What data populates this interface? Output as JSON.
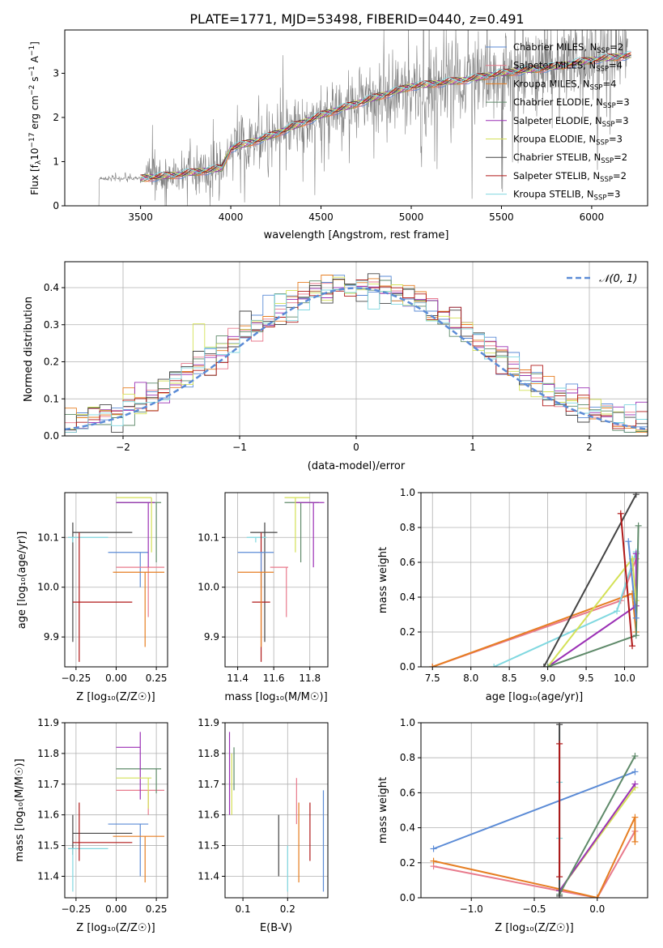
{
  "title": "PLATE=1771, MJD=53498, FIBERID=0440, z=0.491",
  "chart_data": [
    {
      "type": "line",
      "id": "spectrum",
      "xlabel": "wavelength [Angstrom, rest frame]",
      "ylabel_main": "Flux [f",
      "ylabel_sub": "λ",
      "ylabel_mid": "10",
      "ylabel_sup1": "−17",
      "ylabel_rest": " erg cm",
      "ylabel_sup2": "−2",
      "ylabel_s": " s",
      "ylabel_sup3": "−1",
      "ylabel_a": " A",
      "ylabel_sup4": "−1",
      "ylabel_end": "]",
      "xlim": [
        3080,
        6310
      ],
      "ylim": [
        0,
        3.98
      ],
      "xticks": [
        "3500",
        "4000",
        "4500",
        "5000",
        "5500",
        "6000"
      ],
      "yticks": [
        "0",
        "1",
        "2",
        "3"
      ],
      "xtick_values": [
        3500,
        4000,
        4500,
        5000,
        5500,
        6000
      ],
      "ytick_values": [
        0,
        1,
        2,
        3
      ],
      "data_color": "#808080",
      "legend": [
        {
          "name": "Chabrier MILES, N",
          "sub": "SSP",
          "tail": "=2",
          "color": "#5b8bd6"
        },
        {
          "name": "Salpeter MILES, N",
          "sub": "SSP",
          "tail": "=4",
          "color": "#e87a8c"
        },
        {
          "name": "Kroupa MILES, N",
          "sub": "SSP",
          "tail": "=4",
          "color": "#e67e22"
        },
        {
          "name": "Chabrier ELODIE, N",
          "sub": "SSP",
          "tail": "=3",
          "color": "#5f8a6a"
        },
        {
          "name": "Salpeter ELODIE, N",
          "sub": "SSP",
          "tail": "=3",
          "color": "#9b30b5"
        },
        {
          "name": "Kroupa ELODIE, N",
          "sub": "SSP",
          "tail": "=3",
          "color": "#d4e157"
        },
        {
          "name": "Chabrier STELIB, N",
          "sub": "SSP",
          "tail": "=2",
          "color": "#444444"
        },
        {
          "name": "Salpeter STELIB, N",
          "sub": "SSP",
          "tail": "=2",
          "color": "#b01818"
        },
        {
          "name": "Kroupa STELIB, N",
          "sub": "SSP",
          "tail": "=3",
          "color": "#80d8e0"
        }
      ],
      "model_knots": [
        [
          3500,
          0.62
        ],
        [
          3700,
          0.7
        ],
        [
          3950,
          0.85
        ],
        [
          4000,
          1.3
        ],
        [
          4200,
          1.55
        ],
        [
          4500,
          2.05
        ],
        [
          4800,
          2.45
        ],
        [
          5000,
          2.7
        ],
        [
          5300,
          2.85
        ],
        [
          5500,
          3.0
        ],
        [
          5800,
          3.15
        ],
        [
          6000,
          3.3
        ],
        [
          6200,
          3.4
        ]
      ]
    },
    {
      "type": "step",
      "id": "residual-histogram",
      "xlabel": "(data-model)/error",
      "ylabel": "Normed distribution",
      "xlim": [
        -2.5,
        2.5
      ],
      "ylim": [
        0,
        0.47
      ],
      "xticks": [
        "−2",
        "−1",
        "0",
        "1",
        "2"
      ],
      "yticks": [
        "0.0",
        "0.1",
        "0.2",
        "0.3",
        "0.4"
      ],
      "xtick_values": [
        -2,
        -1,
        0,
        1,
        2
      ],
      "ytick_values": [
        0,
        0.1,
        0.2,
        0.3,
        0.4
      ],
      "bin_width": 0.1,
      "reference_label": "𝒩(0, 1)",
      "reference_color": "#5b8bd6",
      "legend_position": "top-right"
    },
    {
      "type": "scatter",
      "id": "age-vs-metallicity",
      "xlabel": "Z [log₁₀(Z/Z☉)]",
      "ylabel": "age  [log₁₀(age/yr)]",
      "xlim": [
        -0.32,
        0.32
      ],
      "ylim": [
        9.84,
        10.19
      ],
      "xticks": [
        "−0.25",
        "0.00",
        "0.25"
      ],
      "yticks": [
        "9.9",
        "10.0",
        "10.1"
      ],
      "xtick_values": [
        -0.25,
        0,
        0.25
      ],
      "ytick_values": [
        9.9,
        10.0,
        10.1
      ],
      "bars": [
        {
          "color": "#444444",
          "x": -0.27,
          "y": 10.11,
          "xr": [
            -0.27,
            0.1
          ],
          "yr": [
            9.89,
            10.13
          ]
        },
        {
          "color": "#80d8e0",
          "x": -0.27,
          "y": 10.1,
          "xr": [
            -0.3,
            -0.05
          ],
          "yr": [
            10.09,
            10.1
          ]
        },
        {
          "color": "#b01818",
          "x": -0.23,
          "y": 9.97,
          "xr": [
            -0.27,
            0.1
          ],
          "yr": [
            9.85,
            10.11
          ]
        },
        {
          "color": "#5b8bd6",
          "x": 0.15,
          "y": 10.07,
          "xr": [
            -0.05,
            0.2
          ],
          "yr": [
            10.0,
            10.07
          ]
        },
        {
          "color": "#e87a8c",
          "x": 0.2,
          "y": 10.04,
          "xr": [
            0.0,
            0.3
          ],
          "yr": [
            9.94,
            10.04
          ]
        },
        {
          "color": "#e67e22",
          "x": 0.18,
          "y": 10.03,
          "xr": [
            -0.02,
            0.3
          ],
          "yr": [
            9.88,
            10.03
          ]
        },
        {
          "color": "#5f8a6a",
          "x": 0.25,
          "y": 10.17,
          "xr": [
            0.0,
            0.28
          ],
          "yr": [
            10.05,
            10.17
          ]
        },
        {
          "color": "#9b30b5",
          "x": 0.2,
          "y": 10.17,
          "xr": [
            0.0,
            0.24
          ],
          "yr": [
            10.04,
            10.17
          ]
        },
        {
          "color": "#d4e157",
          "x": 0.22,
          "y": 10.18,
          "xr": [
            0.0,
            0.22
          ],
          "yr": [
            10.07,
            10.18
          ]
        }
      ]
    },
    {
      "type": "scatter",
      "id": "age-vs-mass",
      "xlabel": "mass [log₁₀(M/M☉)]",
      "ylabel": "",
      "xlim": [
        11.33,
        11.9
      ],
      "ylim": [
        9.84,
        10.19
      ],
      "xticks": [
        "11.4",
        "11.6",
        "11.8"
      ],
      "yticks": [
        "9.9",
        "10.0",
        "10.1"
      ],
      "xtick_values": [
        11.4,
        11.6,
        11.8
      ],
      "ytick_values": [
        9.9,
        10.0,
        10.1
      ],
      "bars": [
        {
          "color": "#444444",
          "x": 11.55,
          "y": 10.11,
          "xr": [
            11.47,
            11.62
          ],
          "yr": [
            9.89,
            10.13
          ]
        },
        {
          "color": "#80d8e0",
          "x": 11.5,
          "y": 10.1,
          "xr": [
            11.45,
            11.56
          ],
          "yr": [
            10.09,
            10.1
          ]
        },
        {
          "color": "#b01818",
          "x": 11.53,
          "y": 9.97,
          "xr": [
            11.48,
            11.58
          ],
          "yr": [
            9.85,
            10.11
          ]
        },
        {
          "color": "#5b8bd6",
          "x": 11.53,
          "y": 10.07,
          "xr": [
            11.4,
            11.6
          ],
          "yr": [
            10.0,
            10.07
          ]
        },
        {
          "color": "#e87a8c",
          "x": 11.67,
          "y": 10.04,
          "xr": [
            11.58,
            11.68
          ],
          "yr": [
            9.94,
            10.04
          ]
        },
        {
          "color": "#e67e22",
          "x": 11.53,
          "y": 10.03,
          "xr": [
            11.4,
            11.6
          ],
          "yr": [
            9.88,
            10.03
          ]
        },
        {
          "color": "#5f8a6a",
          "x": 11.75,
          "y": 10.17,
          "xr": [
            11.66,
            11.85
          ],
          "yr": [
            10.05,
            10.17
          ]
        },
        {
          "color": "#9b30b5",
          "x": 11.82,
          "y": 10.17,
          "xr": [
            11.72,
            11.88
          ],
          "yr": [
            10.04,
            10.17
          ]
        },
        {
          "color": "#d4e157",
          "x": 11.72,
          "y": 10.18,
          "xr": [
            11.66,
            11.8
          ],
          "yr": [
            10.07,
            10.18
          ]
        }
      ]
    },
    {
      "type": "line",
      "id": "mass-weight-vs-age",
      "xlabel": "age  [log₁₀(age/yr)]",
      "ylabel": "mass weight",
      "xlim": [
        7.35,
        10.3
      ],
      "ylim": [
        0,
        1
      ],
      "xticks": [
        "7.5",
        "8.0",
        "8.5",
        "9.0",
        "9.5",
        "10.0"
      ],
      "yticks": [
        "0.0",
        "0.2",
        "0.4",
        "0.6",
        "0.8",
        "1.0"
      ],
      "xtick_values": [
        7.5,
        8.0,
        8.5,
        9.0,
        9.5,
        10.0
      ],
      "ytick_values": [
        0,
        0.2,
        0.4,
        0.6,
        0.8,
        1.0
      ],
      "series": [
        {
          "color": "#e87a8c",
          "points": [
            [
              7.5,
              0.0
            ],
            [
              9.95,
              0.38
            ],
            [
              10.15,
              0.62
            ]
          ]
        },
        {
          "color": "#e67e22",
          "points": [
            [
              7.5,
              0.0
            ],
            [
              10.1,
              0.42
            ],
            [
              10.15,
              0.2
            ]
          ]
        },
        {
          "color": "#80d8e0",
          "points": [
            [
              8.3,
              0.0
            ],
            [
              9.9,
              0.32
            ],
            [
              10.15,
              0.66
            ]
          ]
        },
        {
          "color": "#9b30b5",
          "points": [
            [
              9.0,
              0.0
            ],
            [
              10.15,
              0.35
            ],
            [
              10.15,
              0.65
            ]
          ]
        },
        {
          "color": "#d4e157",
          "points": [
            [
              9.0,
              0.0
            ],
            [
              10.1,
              0.62
            ],
            [
              10.15,
              0.38
            ]
          ]
        },
        {
          "color": "#5f8a6a",
          "points": [
            [
              9.0,
              0.0
            ],
            [
              10.15,
              0.18
            ],
            [
              10.18,
              0.81
            ]
          ]
        },
        {
          "color": "#444444",
          "points": [
            [
              8.95,
              0.0
            ],
            [
              10.15,
              0.99
            ]
          ]
        },
        {
          "color": "#b01818",
          "points": [
            [
              9.95,
              0.88
            ],
            [
              10.1,
              0.12
            ]
          ]
        },
        {
          "color": "#5b8bd6",
          "points": [
            [
              10.05,
              0.72
            ],
            [
              10.15,
              0.28
            ]
          ]
        }
      ]
    },
    {
      "type": "scatter",
      "id": "mass-vs-metallicity",
      "xlabel": "Z [log₁₀(Z/Z☉)]",
      "ylabel": "mass [log₁₀(M/M☉)]",
      "xlim": [
        -0.32,
        0.32
      ],
      "ylim": [
        11.33,
        11.9
      ],
      "xticks": [
        "−0.25",
        "0.00",
        "0.25"
      ],
      "yticks": [
        "11.4",
        "11.5",
        "11.6",
        "11.7",
        "11.8",
        "11.9"
      ],
      "xtick_values": [
        -0.25,
        0,
        0.25
      ],
      "ytick_values": [
        11.4,
        11.5,
        11.6,
        11.7,
        11.8,
        11.9
      ],
      "bars": [
        {
          "color": "#444444",
          "x": -0.27,
          "y": 11.54,
          "xr": [
            -0.27,
            0.1
          ],
          "yr": [
            11.47,
            11.6
          ]
        },
        {
          "color": "#80d8e0",
          "x": -0.27,
          "y": 11.49,
          "xr": [
            -0.3,
            -0.05
          ],
          "yr": [
            11.35,
            11.49
          ]
        },
        {
          "color": "#b01818",
          "x": -0.23,
          "y": 11.51,
          "xr": [
            -0.27,
            0.1
          ],
          "yr": [
            11.45,
            11.64
          ]
        },
        {
          "color": "#5b8bd6",
          "x": 0.15,
          "y": 11.57,
          "xr": [
            -0.05,
            0.2
          ],
          "yr": [
            11.4,
            11.57
          ]
        },
        {
          "color": "#e87a8c",
          "x": 0.2,
          "y": 11.68,
          "xr": [
            0.0,
            0.3
          ],
          "yr": [
            11.6,
            11.68
          ]
        },
        {
          "color": "#e67e22",
          "x": 0.18,
          "y": 11.53,
          "xr": [
            -0.02,
            0.3
          ],
          "yr": [
            11.38,
            11.53
          ]
        },
        {
          "color": "#5f8a6a",
          "x": 0.25,
          "y": 11.75,
          "xr": [
            0.0,
            0.28
          ],
          "yr": [
            11.67,
            11.75
          ]
        },
        {
          "color": "#9b30b5",
          "x": 0.15,
          "y": 11.82,
          "xr": [
            0.0,
            0.15
          ],
          "yr": [
            11.65,
            11.87
          ]
        },
        {
          "color": "#d4e157",
          "x": 0.2,
          "y": 11.72,
          "xr": [
            0.0,
            0.22
          ],
          "yr": [
            11.62,
            11.72
          ]
        }
      ]
    },
    {
      "type": "scatter",
      "id": "mass-vs-extinction",
      "xlabel": "E(B-V)",
      "ylabel": "",
      "xlim": [
        0.06,
        0.29
      ],
      "ylim": [
        11.33,
        11.9
      ],
      "xticks": [
        "0.1",
        "0.2"
      ],
      "yticks": [
        "11.4",
        "11.5",
        "11.6",
        "11.7",
        "11.8",
        "11.9"
      ],
      "xtick_values": [
        0.1,
        0.2
      ],
      "ytick_values": [
        11.4,
        11.5,
        11.6,
        11.7,
        11.8,
        11.9
      ],
      "bars": [
        {
          "color": "#9b30b5",
          "x": 0.07,
          "yr": [
            11.6,
            11.87
          ]
        },
        {
          "color": "#d4e157",
          "x": 0.075,
          "yr": [
            11.6,
            11.8
          ]
        },
        {
          "color": "#5f8a6a",
          "x": 0.08,
          "yr": [
            11.68,
            11.82
          ]
        },
        {
          "color": "#444444",
          "x": 0.18,
          "yr": [
            11.4,
            11.6
          ]
        },
        {
          "color": "#80d8e0",
          "x": 0.2,
          "yr": [
            11.35,
            11.5
          ]
        },
        {
          "color": "#e87a8c",
          "x": 0.22,
          "yr": [
            11.57,
            11.72
          ]
        },
        {
          "color": "#e67e22",
          "x": 0.225,
          "yr": [
            11.38,
            11.64
          ]
        },
        {
          "color": "#b01818",
          "x": 0.25,
          "yr": [
            11.45,
            11.64
          ]
        },
        {
          "color": "#5b8bd6",
          "x": 0.28,
          "yr": [
            11.35,
            11.68
          ]
        }
      ]
    },
    {
      "type": "line",
      "id": "mass-weight-vs-metallicity",
      "xlabel": "Z [log₁₀(Z/Z☉)]",
      "ylabel": "mass weight",
      "xlim": [
        -1.4,
        0.4
      ],
      "ylim": [
        0,
        1
      ],
      "xticks": [
        "−1.0",
        "−0.5",
        "0.0"
      ],
      "yticks": [
        "0.0",
        "0.2",
        "0.4",
        "0.6",
        "0.8",
        "1.0"
      ],
      "xtick_values": [
        -1.0,
        -0.5,
        0.0
      ],
      "ytick_values": [
        0,
        0.2,
        0.4,
        0.6,
        0.8,
        1.0
      ],
      "series": [
        {
          "color": "#5b8bd6",
          "points": [
            [
              -1.3,
              0.28
            ],
            [
              0.3,
              0.72
            ]
          ]
        },
        {
          "color": "#e87a8c",
          "points": [
            [
              -1.3,
              0.18
            ],
            [
              -0.3,
              0.04
            ],
            [
              0.0,
              0.0
            ],
            [
              0.3,
              0.38
            ]
          ]
        },
        {
          "color": "#e67e22",
          "points": [
            [
              -1.3,
              0.21
            ],
            [
              -0.3,
              0.05
            ],
            [
              0.0,
              0.0
            ],
            [
              0.3,
              0.46
            ],
            [
              0.3,
              0.32
            ]
          ]
        },
        {
          "color": "#d4e157",
          "points": [
            [
              -0.3,
              0.04
            ],
            [
              0.3,
              0.63
            ]
          ]
        },
        {
          "color": "#9b30b5",
          "points": [
            [
              -0.3,
              0.04
            ],
            [
              0.3,
              0.65
            ]
          ]
        },
        {
          "color": "#5f8a6a",
          "points": [
            [
              -0.3,
              0.02
            ],
            [
              0.3,
              0.81
            ]
          ]
        },
        {
          "color": "#80d8e0",
          "points": [
            [
              -0.3,
              0.66
            ],
            [
              -0.3,
              0.34
            ]
          ]
        },
        {
          "color": "#444444",
          "points": [
            [
              -0.3,
              0.99
            ],
            [
              -0.3,
              0.01
            ]
          ]
        },
        {
          "color": "#b01818",
          "points": [
            [
              -0.3,
              0.88
            ],
            [
              -0.3,
              0.12
            ]
          ]
        }
      ]
    }
  ]
}
